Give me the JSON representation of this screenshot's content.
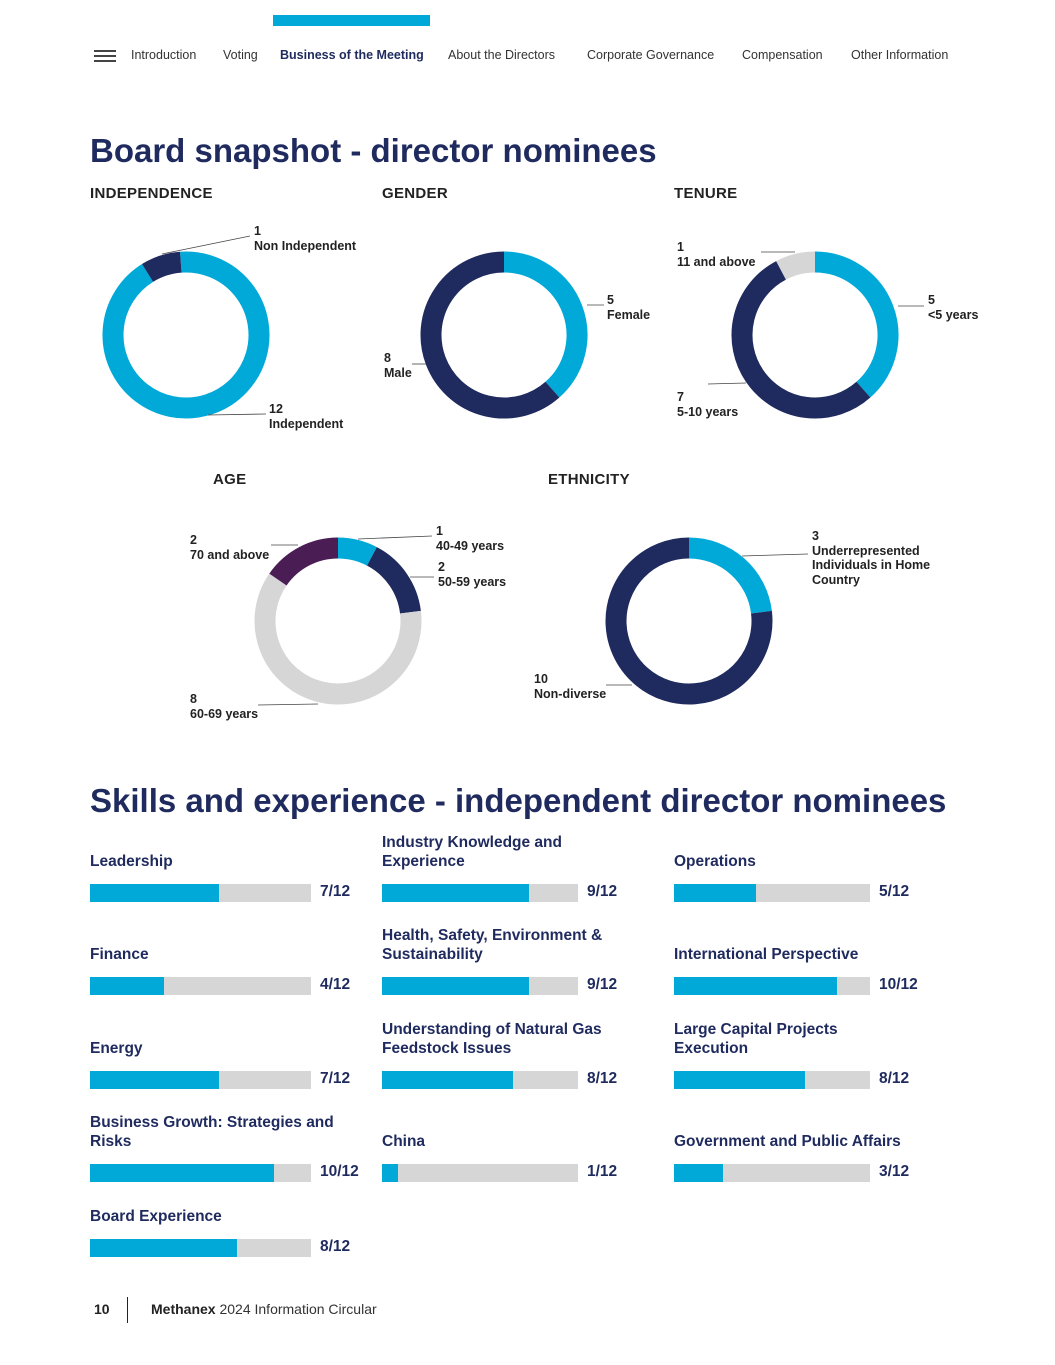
{
  "nav": {
    "items": [
      "Introduction",
      "Voting",
      "Business of the Meeting",
      "About the Directors",
      "Corporate Governance",
      "Compensation",
      "Other Information"
    ],
    "active_index": 2
  },
  "section1": {
    "title": "Board snapshot - director nominees"
  },
  "section2": {
    "title": "Skills and experience - independent director nominees"
  },
  "colors": {
    "cyan": "#00a9d8",
    "navy": "#1f2a5e",
    "grey": "#d6d6d6",
    "purple": "#4a1d55"
  },
  "chart_data": [
    {
      "type": "pie",
      "title": "INDEPENDENCE",
      "slices": [
        {
          "label": "Independent",
          "value": 12,
          "color": "cyan"
        },
        {
          "label": "Non Independent",
          "value": 1,
          "color": "navy"
        }
      ]
    },
    {
      "type": "pie",
      "title": "GENDER",
      "slices": [
        {
          "label": "Female",
          "value": 5,
          "color": "cyan"
        },
        {
          "label": "Male",
          "value": 8,
          "color": "navy"
        }
      ]
    },
    {
      "type": "pie",
      "title": "TENURE",
      "slices": [
        {
          "label": "<5 years",
          "value": 5,
          "color": "cyan"
        },
        {
          "label": "5-10 years",
          "value": 7,
          "color": "navy"
        },
        {
          "label": "11 and above",
          "value": 1,
          "color": "grey"
        }
      ]
    },
    {
      "type": "pie",
      "title": "AGE",
      "slices": [
        {
          "label": "40-49 years",
          "value": 1,
          "color": "cyan"
        },
        {
          "label": "50-59 years",
          "value": 2,
          "color": "navy"
        },
        {
          "label": "60-69 years",
          "value": 8,
          "color": "grey"
        },
        {
          "label": "70 and above",
          "value": 2,
          "color": "purple"
        }
      ]
    },
    {
      "type": "pie",
      "title": "ETHNICITY",
      "slices": [
        {
          "label": "Underrepresented Individuals in Home Country",
          "value": 3,
          "color": "cyan"
        },
        {
          "label": "Non-diverse",
          "value": 10,
          "color": "navy"
        }
      ]
    },
    {
      "type": "bar",
      "total": 12,
      "skills": [
        {
          "label": "Leadership",
          "value": 7,
          "text": "7/12"
        },
        {
          "label": "Industry Knowledge and Experience",
          "value": 9,
          "text": "9/12"
        },
        {
          "label": "Operations",
          "value": 5,
          "text": "5/12"
        },
        {
          "label": "Finance",
          "value": 4,
          "text": "4/12"
        },
        {
          "label": "Health, Safety, Environment & Sustainability",
          "value": 9,
          "text": "9/12"
        },
        {
          "label": "International Perspective",
          "value": 10,
          "text": "10/12"
        },
        {
          "label": "Energy",
          "value": 7,
          "text": "7/12"
        },
        {
          "label": "Understanding of Natural Gas Feedstock Issues",
          "value": 8,
          "text": "8/12"
        },
        {
          "label": "Large Capital Projects Execution",
          "value": 8,
          "text": "8/12"
        },
        {
          "label": "Business Growth: Strategies and Risks",
          "value": 10,
          "text": "10/12"
        },
        {
          "label": "China",
          "value": 1,
          "text": "1/12"
        },
        {
          "label": "Government and Public Affairs",
          "value": 3,
          "text": "3/12"
        },
        {
          "label": "Board Experience",
          "value": 8,
          "text": "8/12"
        }
      ]
    }
  ],
  "footer": {
    "page": "10",
    "brand": "Methanex",
    "doc": "2024 Information Circular"
  }
}
